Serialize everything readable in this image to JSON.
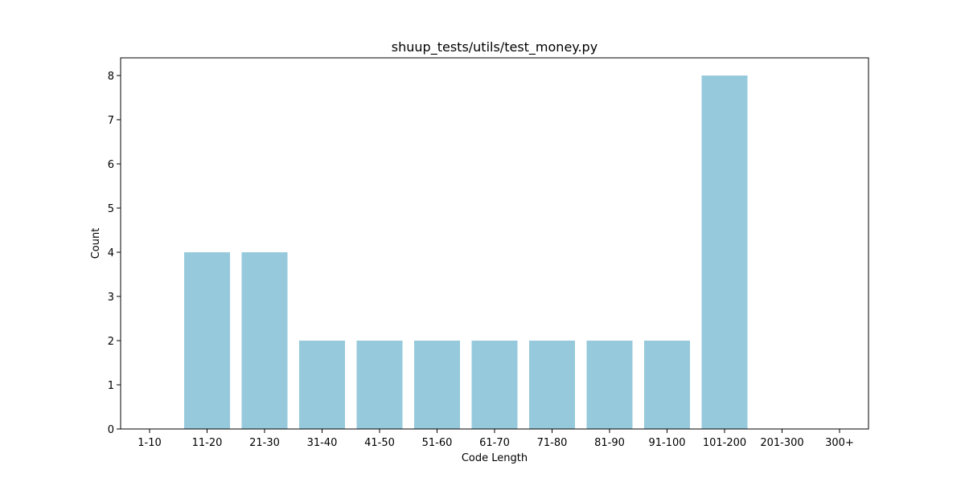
{
  "chart_data": {
    "type": "bar",
    "title": "shuup_tests/utils/test_money.py",
    "xlabel": "Code Length",
    "ylabel": "Count",
    "categories": [
      "1-10",
      "11-20",
      "21-30",
      "31-40",
      "41-50",
      "51-60",
      "61-70",
      "71-80",
      "81-90",
      "91-100",
      "101-200",
      "201-300",
      "300+"
    ],
    "values": [
      0,
      4,
      4,
      2,
      2,
      2,
      2,
      2,
      2,
      2,
      8,
      0,
      0
    ],
    "ylim": [
      0,
      8.4
    ],
    "yticks": [
      0,
      1,
      2,
      3,
      4,
      5,
      6,
      7,
      8
    ],
    "grid": false,
    "legend": "none",
    "bar_color": "#96c9dc"
  }
}
